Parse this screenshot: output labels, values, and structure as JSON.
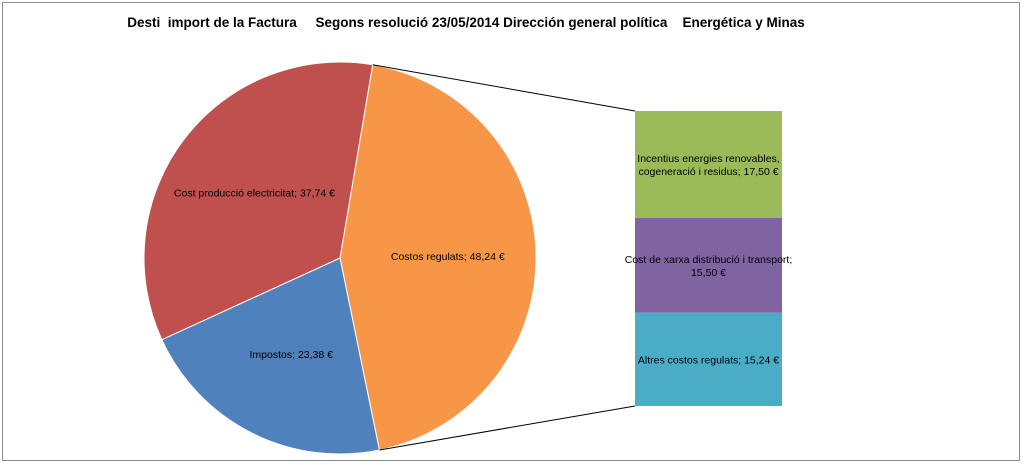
{
  "chart_data": {
    "type": "bar-of-pie",
    "title": "Desti  import de la Factura     Segons resolució 23/05/2014 Dirección general política    Energética y Minas",
    "pie": {
      "slices": [
        {
          "label": "Costos regulats",
          "value": 48.24,
          "display": "Costos regulats;  48,24 €",
          "color": "#f79646"
        },
        {
          "label": "Impostos",
          "value": 23.38,
          "display": "Impostos;  23,38 €",
          "color": "#4f81bd"
        },
        {
          "label": "Cost producció electricitat",
          "value": 37.74,
          "display": "Cost producció electricitat;  37,74 €",
          "color": "#c0504d"
        }
      ]
    },
    "bar": {
      "parent": "Costos regulats",
      "segments": [
        {
          "label": "Incentius energies renovables, cogeneració i residus",
          "value": 17.5,
          "display": [
            "Incentius energies renovables,",
            "cogeneració i residus;  17,50 €"
          ],
          "color": "#9bbb59"
        },
        {
          "label": "Cost de xarxa distribució i transport",
          "value": 15.5,
          "display": [
            "Cost de xarxa distribució i transport;",
            "15,50 €"
          ],
          "color": "#8064a2"
        },
        {
          "label": "Altres costos regulats",
          "value": 15.24,
          "display": [
            "Altres costos regulats;  15,24 €"
          ],
          "color": "#4bacc6"
        }
      ]
    },
    "legend": "none"
  }
}
